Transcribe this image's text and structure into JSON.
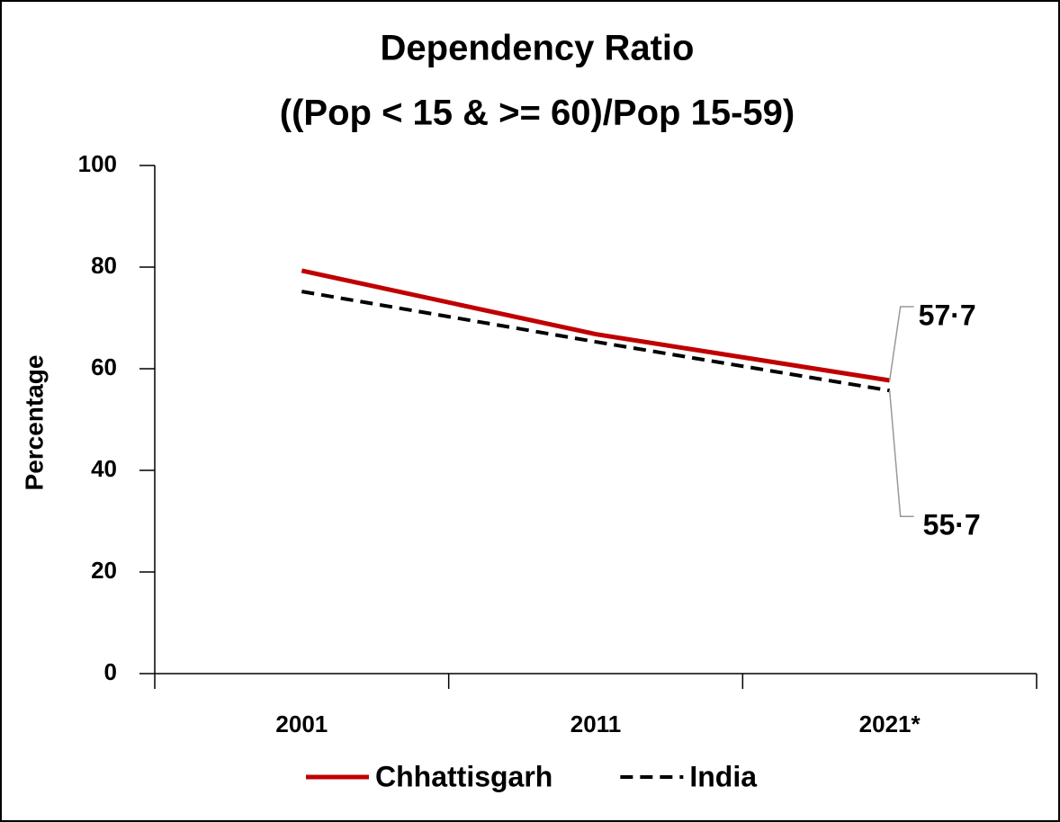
{
  "chart_data": {
    "type": "line",
    "title": "Dependency Ratio",
    "subtitle": "((Pop < 15 & >= 60)/Pop 15-59)",
    "y_label": "Percentage",
    "categories": [
      "2001",
      "2011",
      "2021*"
    ],
    "series": [
      {
        "name": "Chhattisgarh",
        "color": "#c00000",
        "dash": "solid",
        "values": [
          79.3,
          66.8,
          57.7
        ],
        "value_labels": [
          null,
          null,
          "57·7"
        ]
      },
      {
        "name": "India",
        "color": "#000000",
        "dash": "dashed",
        "values": [
          75.2,
          65.3,
          55.7
        ],
        "value_labels": [
          null,
          null,
          "55·7"
        ]
      }
    ],
    "ylim": [
      0,
      100
    ],
    "yticks": [
      0,
      20,
      40,
      60,
      80,
      100
    ],
    "grid": false,
    "legend": "bottom"
  }
}
